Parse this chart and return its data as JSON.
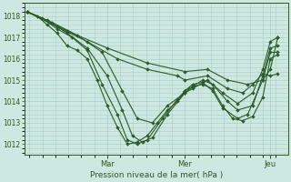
{
  "bg_color": "#cce8e0",
  "grid_color": "#aad0c8",
  "line_color": "#2d5a27",
  "xlabel": "Pression niveau de la mer( hPa )",
  "ylim": [
    1011.5,
    1018.6
  ],
  "yticks": [
    1012,
    1013,
    1014,
    1015,
    1016,
    1017,
    1018
  ],
  "day_labels": [
    "Mar",
    "Mer",
    "Jeu"
  ],
  "day_positions": [
    0.32,
    0.63,
    0.97
  ],
  "series": [
    [
      0.0,
      1018.2,
      0.04,
      1018.0,
      0.08,
      1017.6,
      0.12,
      1017.2,
      0.16,
      1016.6,
      0.2,
      1016.4,
      0.24,
      1016.0,
      0.28,
      1015.0,
      0.32,
      1013.8,
      0.36,
      1012.8,
      0.4,
      1012.0,
      0.44,
      1012.1,
      0.48,
      1012.4,
      0.52,
      1013.0,
      0.56,
      1013.6,
      0.6,
      1014.0,
      0.63,
      1014.5,
      0.66,
      1014.7,
      0.7,
      1014.8,
      0.74,
      1014.6,
      0.78,
      1013.8,
      0.82,
      1013.2,
      0.86,
      1013.1,
      0.9,
      1013.3,
      0.94,
      1014.2,
      0.97,
      1016.0,
      1.0,
      1016.2
    ],
    [
      0.0,
      1018.2,
      0.06,
      1017.9,
      0.12,
      1017.4,
      0.18,
      1017.0,
      0.24,
      1016.4,
      0.3,
      1014.8,
      0.36,
      1013.4,
      0.4,
      1012.2,
      0.44,
      1012.0,
      0.48,
      1012.2,
      0.54,
      1013.2,
      0.6,
      1014.1,
      0.63,
      1014.5,
      0.66,
      1014.8,
      0.7,
      1014.9,
      0.74,
      1014.5,
      0.78,
      1013.7,
      0.84,
      1013.2,
      0.88,
      1013.4,
      0.94,
      1015.0,
      0.97,
      1016.3,
      1.0,
      1016.3
    ],
    [
      0.0,
      1018.2,
      0.08,
      1017.8,
      0.16,
      1017.2,
      0.24,
      1016.5,
      0.32,
      1015.2,
      0.38,
      1013.6,
      0.42,
      1012.4,
      0.46,
      1012.1,
      0.5,
      1012.3,
      0.56,
      1013.4,
      0.63,
      1014.4,
      0.66,
      1014.7,
      0.7,
      1015.0,
      0.74,
      1014.8,
      0.8,
      1014.0,
      0.84,
      1013.6,
      0.9,
      1013.8,
      0.94,
      1015.2,
      0.97,
      1016.5,
      1.0,
      1016.6
    ],
    [
      0.0,
      1018.2,
      0.1,
      1017.7,
      0.2,
      1017.1,
      0.3,
      1016.3,
      0.38,
      1014.5,
      0.44,
      1013.2,
      0.5,
      1013.0,
      0.56,
      1013.8,
      0.63,
      1014.4,
      0.66,
      1014.6,
      0.72,
      1015.0,
      0.78,
      1014.4,
      0.84,
      1013.9,
      0.9,
      1014.4,
      0.94,
      1015.5,
      0.97,
      1016.8,
      1.0,
      1017.0
    ],
    [
      0.0,
      1018.2,
      0.12,
      1017.5,
      0.24,
      1016.8,
      0.36,
      1016.0,
      0.48,
      1015.5,
      0.6,
      1015.2,
      0.63,
      1015.0,
      0.72,
      1015.2,
      0.8,
      1014.6,
      0.86,
      1014.4,
      0.9,
      1014.8,
      0.94,
      1015.3,
      0.97,
      1015.2,
      1.0,
      1015.3
    ],
    [
      0.0,
      1018.2,
      0.16,
      1017.3,
      0.32,
      1016.5,
      0.48,
      1015.8,
      0.63,
      1015.4,
      0.72,
      1015.5,
      0.8,
      1015.0,
      0.88,
      1014.8,
      0.94,
      1015.0,
      0.97,
      1015.5,
      1.0,
      1017.0
    ]
  ]
}
